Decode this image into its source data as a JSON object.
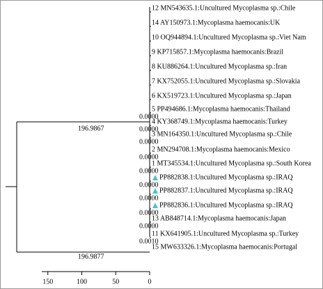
{
  "tree": {
    "leaves": [
      {
        "label": "12 MN543635.1:Uncultured Mycoplasma sp.:Chile"
      },
      {
        "label": "14 AY150973.1:Mycoplasma haemocanis:UK"
      },
      {
        "label": "10 OQ944894.1:Uncultured Mycoplasma sp.:Viet Nam"
      },
      {
        "label": "9 KP715857.1:Mycoplasma haemocanis:Brazil"
      },
      {
        "label": "8 KU886264.1:Uncultured Mycoplasma sp.:Iran"
      },
      {
        "label": "7 KX752055.1:Uncultured Mycoplasma sp.:Slovakia"
      },
      {
        "label": "6 KX519723.1:Uncultured Mycoplasma sp.:Japan"
      },
      {
        "label": "5 PP494686.1:Mycoplasma haemocanis:Thailand",
        "branch_length": "0.0000"
      },
      {
        "label": "4 KY368749.1:Mycoplasma haemocanis:Turkey",
        "branch_length": "0.0000"
      },
      {
        "label": "3 MN164350.1:Uncultured Mycoplasma sp.:Chile",
        "branch_length": "0.0000"
      },
      {
        "label": "2 MN294708.1:Mycoplasma haemocanis:Mexico",
        "branch_length": "0.0000"
      },
      {
        "label": "1 MT345534.1:Uncultured Mycoplasma sp.:South Korea",
        "branch_length": "0.0000"
      },
      {
        "label": "PP882838.1:Uncultured Mycoplasma sp.:IRAQ",
        "branch_length": "0.0000",
        "highlight": true
      },
      {
        "label": "PP882837.1:Uncultured Mycoplasma sp.:IRAQ",
        "branch_length": "0.0000",
        "highlight": true
      },
      {
        "label": "PP882836.1:Uncultured Mycoplasma sp.:IRAQ",
        "branch_length": "0.0000",
        "highlight": true
      },
      {
        "label": "13 AB848714.1:Mycoplasma haemocanis:Japan",
        "branch_length": "0.0000"
      },
      {
        "label": "11 KX641905.1:Uncultured Mycoplasma sp.:Turkey",
        "branch_length": "0.0010"
      },
      {
        "label": "15 MW633326.1:Mycoplasma haemocanis:Portugal"
      }
    ],
    "internal_branch_labels": [
      "196.9867",
      "196.9877"
    ],
    "scale_ticks": [
      150,
      100,
      50,
      0
    ]
  }
}
